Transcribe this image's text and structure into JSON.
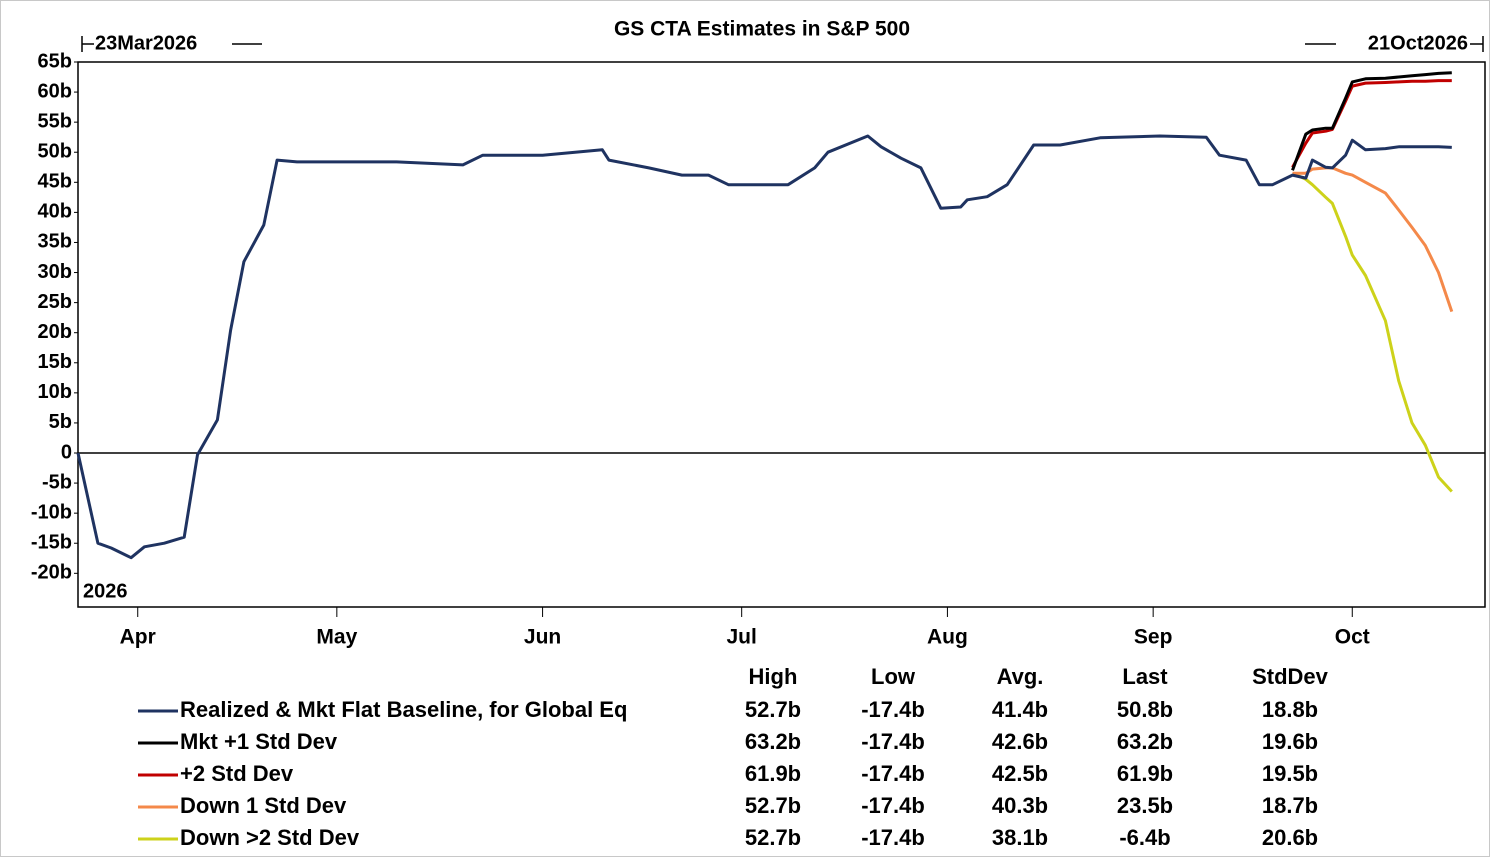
{
  "chart_data": {
    "type": "line",
    "title": "GS CTA Estimates in S&P 500",
    "range_labels": [
      "23Mar2026",
      "21Oct2026"
    ],
    "year_label": "2026",
    "x": [
      "2026-03-23",
      "2026-03-26",
      "2026-03-28",
      "2026-03-31",
      "2026-04-02",
      "2026-04-05",
      "2026-04-08",
      "2026-04-10",
      "2026-04-13",
      "2026-04-15",
      "2026-04-17",
      "2026-04-20",
      "2026-04-22",
      "2026-04-25",
      "2026-05-10",
      "2026-05-20",
      "2026-05-23",
      "2026-06-01",
      "2026-06-10",
      "2026-06-11",
      "2026-06-17",
      "2026-06-22",
      "2026-06-26",
      "2026-06-29",
      "2026-07-08",
      "2026-07-12",
      "2026-07-14",
      "2026-07-20",
      "2026-07-22",
      "2026-07-25",
      "2026-07-28",
      "2026-07-31",
      "2026-08-03",
      "2026-08-04",
      "2026-08-07",
      "2026-08-10",
      "2026-08-14",
      "2026-08-18",
      "2026-08-24",
      "2026-09-02",
      "2026-09-09",
      "2026-09-11",
      "2026-09-15",
      "2026-09-17",
      "2026-09-19",
      "2026-09-22",
      "2026-09-24",
      "2026-09-25",
      "2026-09-27",
      "2026-09-28",
      "2026-09-30",
      "2026-10-01",
      "2026-10-03",
      "2026-10-06",
      "2026-10-08",
      "2026-10-10",
      "2026-10-12",
      "2026-10-14",
      "2026-10-16"
    ],
    "xlim": [
      "2026-03-23",
      "2026-10-21"
    ],
    "xticks": [
      {
        "value": "2026-04-01",
        "label": "Apr"
      },
      {
        "value": "2026-05-01",
        "label": "May"
      },
      {
        "value": "2026-06-01",
        "label": "Jun"
      },
      {
        "value": "2026-07-01",
        "label": "Jul"
      },
      {
        "value": "2026-08-01",
        "label": "Aug"
      },
      {
        "value": "2026-09-01",
        "label": "Sep"
      },
      {
        "value": "2026-10-01",
        "label": "Oct"
      }
    ],
    "ylim": [
      -25.6,
      65
    ],
    "yticks": [
      {
        "value": 65,
        "label": "65b"
      },
      {
        "value": 60,
        "label": "60b"
      },
      {
        "value": 55,
        "label": "55b"
      },
      {
        "value": 50,
        "label": "50b"
      },
      {
        "value": 45,
        "label": "45b"
      },
      {
        "value": 40,
        "label": "40b"
      },
      {
        "value": 35,
        "label": "35b"
      },
      {
        "value": 30,
        "label": "30b"
      },
      {
        "value": 25,
        "label": "25b"
      },
      {
        "value": 20,
        "label": "20b"
      },
      {
        "value": 15,
        "label": "15b"
      },
      {
        "value": 10,
        "label": "10b"
      },
      {
        "value": 5,
        "label": "5b"
      },
      0,
      {
        "value": -5,
        "label": "-5b"
      },
      {
        "value": -10,
        "label": "-10b"
      },
      {
        "value": -15,
        "label": "-15b"
      },
      {
        "value": -20,
        "label": "-20b"
      }
    ],
    "grid": false,
    "stats_header": [
      "High",
      "Low",
      "Avg.",
      "Last",
      "StdDev"
    ],
    "series": [
      {
        "name": "Realized & Mkt Flat Baseline, for Global Eq",
        "color": "#1f3361",
        "values": [
          0,
          -15,
          -15.8,
          -17.4,
          -15.6,
          -15,
          -14,
          -0.3,
          5.5,
          20.4,
          31.8,
          37.9,
          48.7,
          48.4,
          48.4,
          47.9,
          49.5,
          49.5,
          50.4,
          48.7,
          47.4,
          46.2,
          46.2,
          44.6,
          44.6,
          47.4,
          50,
          52.7,
          50.9,
          49,
          47.4,
          40.7,
          40.9,
          42.1,
          42.6,
          44.6,
          51.2,
          51.2,
          52.4,
          52.7,
          52.5,
          49.5,
          48.7,
          44.6,
          44.6,
          46.2,
          45.7,
          48.7,
          47.5,
          47.4,
          49.5,
          52,
          50.4,
          50.6,
          50.9,
          50.9,
          50.9,
          50.9,
          50.8
        ],
        "stats": [
          "52.7b",
          "-17.4b",
          "41.4b",
          "50.8b",
          "18.8b"
        ]
      },
      {
        "name": "Mkt +1 Std Dev",
        "color": "#000000",
        "values": [
          null,
          null,
          null,
          null,
          null,
          null,
          null,
          null,
          null,
          null,
          null,
          null,
          null,
          null,
          null,
          null,
          null,
          null,
          null,
          null,
          null,
          null,
          null,
          null,
          null,
          null,
          null,
          null,
          null,
          null,
          null,
          null,
          null,
          null,
          null,
          null,
          null,
          null,
          null,
          null,
          null,
          null,
          null,
          null,
          null,
          47,
          53,
          53.7,
          54,
          54,
          59,
          61.7,
          62.2,
          62.3,
          62.5,
          62.7,
          62.9,
          63.1,
          63.2
        ],
        "stats": [
          "63.2b",
          "-17.4b",
          "42.6b",
          "63.2b",
          "19.6b"
        ]
      },
      {
        "name": "+2 Std Dev",
        "color": "#c00000",
        "values": [
          null,
          null,
          null,
          null,
          null,
          null,
          null,
          null,
          null,
          null,
          null,
          null,
          null,
          null,
          null,
          null,
          null,
          null,
          null,
          null,
          null,
          null,
          null,
          null,
          null,
          null,
          null,
          null,
          null,
          null,
          null,
          null,
          null,
          null,
          null,
          null,
          null,
          null,
          null,
          null,
          null,
          null,
          null,
          null,
          null,
          47.5,
          51.5,
          53.2,
          53.5,
          53.8,
          58.5,
          61,
          61.5,
          61.6,
          61.7,
          61.8,
          61.8,
          61.9,
          61.9
        ],
        "stats": [
          "61.9b",
          "-17.4b",
          "42.5b",
          "61.9b",
          "19.5b"
        ]
      },
      {
        "name": "Down 1 Std Dev",
        "color": "#f4894a",
        "values": [
          null,
          null,
          null,
          null,
          null,
          null,
          null,
          null,
          null,
          null,
          null,
          null,
          null,
          null,
          null,
          null,
          null,
          null,
          null,
          null,
          null,
          null,
          null,
          null,
          null,
          null,
          null,
          null,
          null,
          null,
          null,
          null,
          null,
          null,
          null,
          null,
          null,
          null,
          null,
          null,
          null,
          null,
          null,
          null,
          null,
          46.5,
          46.5,
          47.2,
          47.4,
          47.4,
          46.5,
          46.2,
          45,
          43.2,
          40.4,
          37.5,
          34.5,
          30,
          23.5
        ],
        "stats": [
          "52.7b",
          "-17.4b",
          "40.3b",
          "23.5b",
          "18.7b"
        ]
      },
      {
        "name": "Down >2 Std Dev",
        "color": "#cdd21a",
        "values": [
          null,
          null,
          null,
          null,
          null,
          null,
          null,
          null,
          null,
          null,
          null,
          null,
          null,
          null,
          null,
          null,
          null,
          null,
          null,
          null,
          null,
          null,
          null,
          null,
          null,
          null,
          null,
          null,
          null,
          null,
          null,
          null,
          null,
          null,
          null,
          null,
          null,
          null,
          null,
          null,
          null,
          null,
          null,
          null,
          null,
          46.5,
          45.5,
          44.6,
          42.5,
          41.5,
          36,
          32.9,
          29.5,
          22,
          12,
          5,
          1.3,
          -4,
          -6.4
        ],
        "stats": [
          "52.7b",
          "-17.4b",
          "38.1b",
          "-6.4b",
          "20.6b"
        ]
      }
    ]
  }
}
